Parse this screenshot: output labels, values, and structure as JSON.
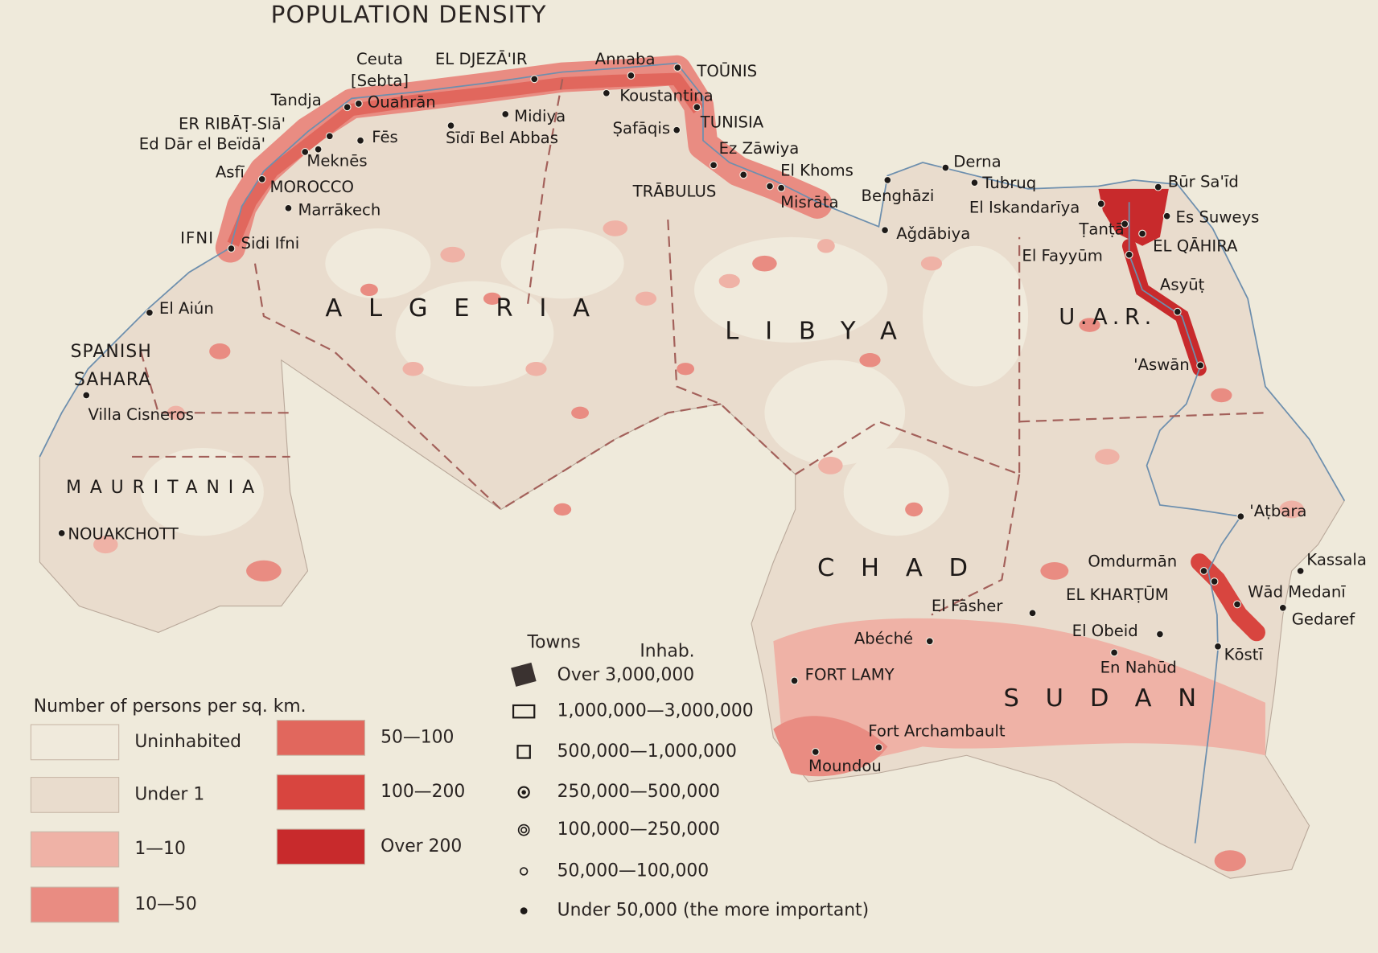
{
  "title": "POPULATION DENSITY",
  "places": [
    "Ceuta",
    "[Sebta]",
    "EL DJEZĀ'IR",
    "Annaba",
    "TOŪNIS",
    "Tandja",
    "Ouahrān",
    "Koustantina",
    "ER RIBĀṬ-Slā'",
    "Midiya",
    "TUNISIA",
    "Ed Dār el Beïdā'",
    "Fēs",
    "Sīdī Bel Abbas",
    "Ṣafāqis",
    "Ez Zāwiya",
    "Meknēs",
    "Asfī",
    "El Khoms",
    "Derna",
    "MOROCCO",
    "Tubruq",
    "Būr Sa'īd",
    "TRĀBULUS",
    "Benghāzi",
    "Misrāta",
    "El Iskandarīya",
    "Es Suweys",
    "Marrākech",
    "Aǧdābiya",
    "Ṭanṭā",
    "EL QĀHIRA",
    "Sidi Ifni",
    "El Fayyūm",
    "Asyūṭ",
    "El Aiún",
    "Villa Cisneros",
    "'Aṭbara",
    "NOUAKCHOTT",
    "Omdurmān",
    "Kassala",
    "El Fāsher",
    "EL KHARṬŪM",
    "Wād Medanī",
    "Gedaref",
    "El Obeid",
    "Abéché",
    "Kōstī",
    "En Nahūd",
    "FORT LAMY",
    "Fort Archambault",
    "Moundou",
    "'Aswān"
  ],
  "countries": [
    "ALGERIA",
    "LIBYA",
    "U.A.R.",
    "CHAD",
    "SUDAN",
    "MAURITANIA",
    "SPANISH",
    "SAHARA",
    "IFNI"
  ],
  "density_legend": {
    "title": "Number of persons per sq. km.",
    "classes": [
      {
        "label": "Uninhabited",
        "color": "#f0eadc"
      },
      {
        "label": "Under 1",
        "color": "#e9dccd"
      },
      {
        "label": "1—10",
        "color": "#efb2a6"
      },
      {
        "label": "10—50",
        "color": "#e98c82"
      },
      {
        "label": "50—100",
        "color": "#e1675d"
      },
      {
        "label": "100—200",
        "color": "#d8453f"
      },
      {
        "label": "Over 200",
        "color": "#c82a2c"
      }
    ]
  },
  "towns_legend": {
    "title": "Towns",
    "unit": "Inhab.",
    "classes": [
      "Over 3,000,000",
      "1,000,000—3,000,000",
      "500,000—1,000,000",
      "250,000—500,000",
      "100,000—250,000",
      "50,000—100,000",
      "Under 50,000 (the more important)"
    ]
  }
}
